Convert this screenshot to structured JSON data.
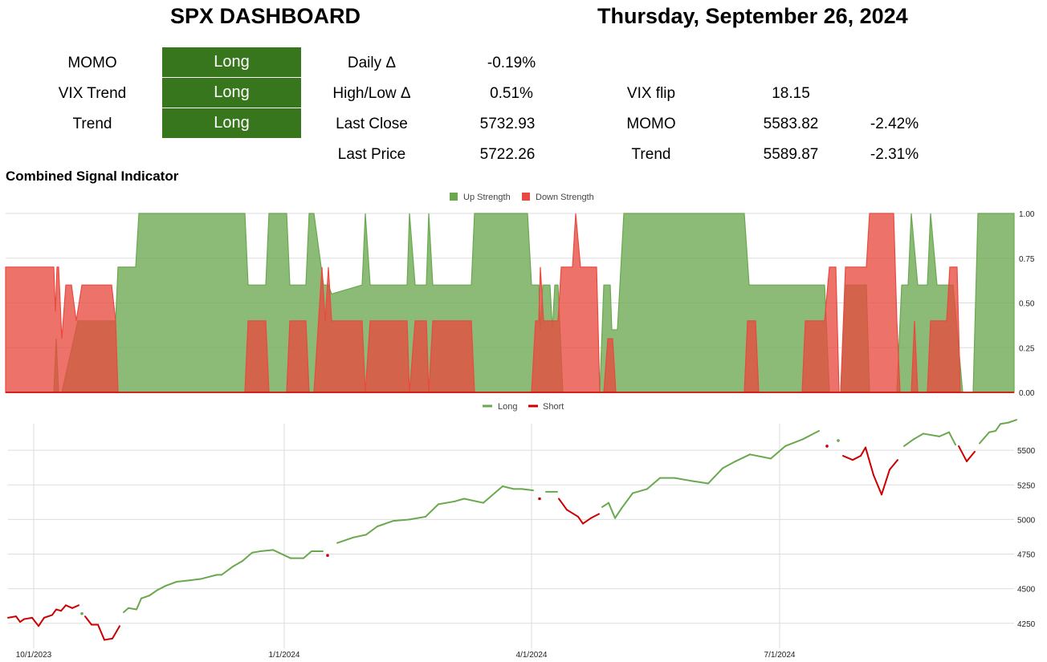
{
  "header": {
    "title": "SPX DASHBOARD",
    "date": "Thursday, September 26, 2024"
  },
  "signals": [
    {
      "label": "MOMO",
      "value": "Long"
    },
    {
      "label": "VIX Trend",
      "value": "Long"
    },
    {
      "label": "Trend",
      "value": "Long"
    }
  ],
  "stats": {
    "daily_label": "Daily Δ",
    "daily_value": "-0.19%",
    "highlow_label": "High/Low Δ",
    "highlow_value": "0.51%",
    "lastclose_label": "Last Close",
    "lastclose_value": "5732.93",
    "lastprice_label": "Last Price",
    "lastprice_value": "5722.26"
  },
  "levels": {
    "vixflip_label": "VIX flip",
    "vixflip_value": "18.15",
    "momo_label": "MOMO",
    "momo_value": "5583.82",
    "momo_pct": "-2.42%",
    "trend_label": "Trend",
    "trend_value": "5589.87",
    "trend_pct": "-2.31%"
  },
  "colors": {
    "long_green": "#38761d",
    "up_fill": "#6aa84f",
    "down_fill": "#e84a3f",
    "short_line": "#cc0000"
  },
  "chart_data": [
    {
      "type": "area",
      "title": "Combined Signal Indicator",
      "legend_position": "top-center",
      "ylim": [
        0,
        1
      ],
      "yticks": [
        "0.00",
        "0.25",
        "0.50",
        "0.75",
        "1.00"
      ],
      "grid": true,
      "series": [
        {
          "name": "Up Strength",
          "color": "#6aa84f",
          "points": [
            [
              0,
              0
            ],
            [
              60,
              0
            ],
            [
              63,
              0.3
            ],
            [
              66,
              0
            ],
            [
              70,
              0
            ],
            [
              85,
              0.3
            ],
            [
              90,
              0.4
            ],
            [
              95,
              0.4
            ],
            [
              137,
              0.4
            ],
            [
              140,
              0.7
            ],
            [
              162,
              0.7
            ],
            [
              166,
              1
            ],
            [
              298,
              1
            ],
            [
              302,
              0.6
            ],
            [
              324,
              0.6
            ],
            [
              328,
              1
            ],
            [
              350,
              1
            ],
            [
              354,
              0.6
            ],
            [
              374,
              0.6
            ],
            [
              378,
              1
            ],
            [
              384,
              1
            ],
            [
              396,
              0.6
            ],
            [
              402,
              0.6
            ],
            [
              406,
              0.55
            ],
            [
              444,
              0.6
            ],
            [
              448,
              1
            ],
            [
              454,
              0.6
            ],
            [
              500,
              0.6
            ],
            [
              503,
              1
            ],
            [
              510,
              0.6
            ],
            [
              524,
              0.6
            ],
            [
              527,
              1
            ],
            [
              532,
              0.6
            ],
            [
              580,
              0.6
            ],
            [
              584,
              1
            ],
            [
              650,
              1
            ],
            [
              655,
              0.6
            ],
            [
              664,
              0.6
            ],
            [
              666,
              0.35
            ],
            [
              669,
              0.6
            ],
            [
              678,
              0.6
            ],
            [
              681,
              0.35
            ],
            [
              684,
              0.6
            ],
            [
              688,
              0.6
            ],
            [
              694,
              0
            ],
            [
              740,
              0
            ],
            [
              745,
              0.6
            ],
            [
              753,
              0.6
            ],
            [
              755,
              0.35
            ],
            [
              762,
              0.35
            ],
            [
              770,
              1
            ],
            [
              920,
              1
            ],
            [
              926,
              0.6
            ],
            [
              1020,
              0.6
            ],
            [
              1026,
              0
            ],
            [
              1040,
              0
            ],
            [
              1046,
              0.6
            ],
            [
              1072,
              0.6
            ],
            [
              1076,
              0
            ],
            [
              1110,
              0
            ],
            [
              1116,
              0.6
            ],
            [
              1124,
              0.6
            ],
            [
              1128,
              1
            ],
            [
              1136,
              0.6
            ],
            [
              1148,
              0.6
            ],
            [
              1152,
              1
            ],
            [
              1160,
              0.6
            ],
            [
              1180,
              0.6
            ],
            [
              1186,
              0.3
            ],
            [
              1192,
              0
            ],
            [
              1205,
              0
            ],
            [
              1211,
              1
            ],
            [
              1256,
              1
            ]
          ]
        },
        {
          "name": "Down Strength",
          "color": "#e84a3f",
          "points": [
            [
              0,
              0.7
            ],
            [
              60,
              0.7
            ],
            [
              62,
              0.45
            ],
            [
              64,
              0.7
            ],
            [
              66,
              0.7
            ],
            [
              70,
              0.3
            ],
            [
              75,
              0.6
            ],
            [
              82,
              0.6
            ],
            [
              88,
              0.4
            ],
            [
              95,
              0.6
            ],
            [
              132,
              0.6
            ],
            [
              137,
              0.4
            ],
            [
              140,
              0
            ],
            [
              298,
              0
            ],
            [
              302,
              0.4
            ],
            [
              324,
              0.4
            ],
            [
              328,
              0
            ],
            [
              350,
              0
            ],
            [
              354,
              0.4
            ],
            [
              374,
              0.4
            ],
            [
              378,
              0
            ],
            [
              384,
              0
            ],
            [
              394,
              0.7
            ],
            [
              398,
              0.4
            ],
            [
              402,
              0.7
            ],
            [
              406,
              0.4
            ],
            [
              444,
              0.4
            ],
            [
              448,
              0
            ],
            [
              454,
              0.4
            ],
            [
              500,
              0.4
            ],
            [
              503,
              0
            ],
            [
              510,
              0.4
            ],
            [
              524,
              0.4
            ],
            [
              527,
              0
            ],
            [
              532,
              0.4
            ],
            [
              580,
              0.4
            ],
            [
              584,
              0
            ],
            [
              655,
              0
            ],
            [
              660,
              0.4
            ],
            [
              664,
              0.4
            ],
            [
              666,
              0.7
            ],
            [
              670,
              0.4
            ],
            [
              688,
              0.4
            ],
            [
              692,
              0.7
            ],
            [
              706,
              0.7
            ],
            [
              710,
              1
            ],
            [
              716,
              0.7
            ],
            [
              736,
              0.7
            ],
            [
              740,
              0
            ],
            [
              745,
              0
            ],
            [
              750,
              0.3
            ],
            [
              756,
              0.3
            ],
            [
              760,
              0
            ],
            [
              920,
              0
            ],
            [
              924,
              0.4
            ],
            [
              934,
              0.4
            ],
            [
              938,
              0
            ],
            [
              992,
              0
            ],
            [
              996,
              0.4
            ],
            [
              1020,
              0.4
            ],
            [
              1026,
              0.7
            ],
            [
              1034,
              0.7
            ],
            [
              1038,
              0
            ],
            [
              1040,
              0
            ],
            [
              1046,
              0.7
            ],
            [
              1072,
              0.7
            ],
            [
              1076,
              1
            ],
            [
              1106,
              1
            ],
            [
              1110,
              0.4
            ],
            [
              1114,
              0
            ],
            [
              1128,
              0
            ],
            [
              1132,
              0.4
            ],
            [
              1136,
              0
            ],
            [
              1148,
              0
            ],
            [
              1152,
              0.4
            ],
            [
              1172,
              0.4
            ],
            [
              1176,
              0.7
            ],
            [
              1185,
              0.7
            ],
            [
              1189,
              0
            ],
            [
              1205,
              0
            ],
            [
              1210,
              0
            ],
            [
              1256,
              0
            ]
          ]
        }
      ]
    },
    {
      "type": "line",
      "legend_position": "top-center",
      "ylim": [
        4150,
        5750
      ],
      "yticks": [
        "4250",
        "4500",
        "4750",
        "5000",
        "5250",
        "5500"
      ],
      "xticks": [
        "10/1/2023",
        "1/1/2024",
        "4/1/2024",
        "7/1/2024"
      ],
      "grid": true,
      "series": [
        {
          "name": "Long",
          "color": "#6aa84f"
        },
        {
          "name": "Short",
          "color": "#cc0000"
        }
      ],
      "price": [
        [
          0,
          4290,
          "S"
        ],
        [
          10,
          4300,
          "S"
        ],
        [
          15,
          4260,
          "S"
        ],
        [
          20,
          4280,
          "S"
        ],
        [
          30,
          4290,
          "S"
        ],
        [
          38,
          4230,
          "S"
        ],
        [
          45,
          4290,
          "S"
        ],
        [
          55,
          4310,
          "S"
        ],
        [
          60,
          4350,
          "S"
        ],
        [
          66,
          4340,
          "S"
        ],
        [
          72,
          4380,
          "S"
        ],
        [
          80,
          4360,
          "S"
        ],
        [
          88,
          4380,
          "S"
        ],
        [
          92,
          4320,
          "L"
        ],
        [
          96,
          4300,
          "S"
        ],
        [
          104,
          4240,
          "S"
        ],
        [
          112,
          4240,
          "S"
        ],
        [
          120,
          4130,
          "S"
        ],
        [
          130,
          4140,
          "S"
        ],
        [
          139,
          4230,
          "S"
        ],
        [
          144,
          4330,
          "L"
        ],
        [
          150,
          4360,
          "L"
        ],
        [
          160,
          4350,
          "L"
        ],
        [
          166,
          4430,
          "L"
        ],
        [
          176,
          4450,
          "L"
        ],
        [
          186,
          4490,
          "L"
        ],
        [
          196,
          4520,
          "L"
        ],
        [
          210,
          4550,
          "L"
        ],
        [
          226,
          4560,
          "L"
        ],
        [
          240,
          4570,
          "L"
        ],
        [
          260,
          4600,
          "L"
        ],
        [
          266,
          4600,
          "L"
        ],
        [
          280,
          4660,
          "L"
        ],
        [
          292,
          4700,
          "L"
        ],
        [
          304,
          4760,
          "L"
        ],
        [
          314,
          4770,
          "L"
        ],
        [
          330,
          4780,
          "L"
        ],
        [
          352,
          4720,
          "L"
        ],
        [
          368,
          4720,
          "L"
        ],
        [
          378,
          4770,
          "L"
        ],
        [
          392,
          4770,
          "L"
        ],
        [
          398,
          4740,
          "S"
        ],
        [
          410,
          4830,
          "L"
        ],
        [
          430,
          4870,
          "L"
        ],
        [
          446,
          4890,
          "L"
        ],
        [
          460,
          4950,
          "L"
        ],
        [
          480,
          4990,
          "L"
        ],
        [
          500,
          5000,
          "L"
        ],
        [
          520,
          5020,
          "L"
        ],
        [
          536,
          5110,
          "L"
        ],
        [
          556,
          5130,
          "L"
        ],
        [
          568,
          5150,
          "L"
        ],
        [
          592,
          5120,
          "L"
        ],
        [
          616,
          5240,
          "L"
        ],
        [
          630,
          5220,
          "L"
        ],
        [
          640,
          5220,
          "L"
        ],
        [
          654,
          5210,
          "L"
        ],
        [
          662,
          5150,
          "S"
        ],
        [
          670,
          5200,
          "L"
        ],
        [
          684,
          5200,
          "L"
        ],
        [
          686,
          5150,
          "S"
        ],
        [
          696,
          5070,
          "S"
        ],
        [
          710,
          5020,
          "S"
        ],
        [
          716,
          4970,
          "S"
        ],
        [
          726,
          5010,
          "S"
        ],
        [
          736,
          5040,
          "S"
        ],
        [
          740,
          5090,
          "L"
        ],
        [
          748,
          5120,
          "L"
        ],
        [
          756,
          5010,
          "L"
        ],
        [
          764,
          5080,
          "L"
        ],
        [
          778,
          5190,
          "L"
        ],
        [
          796,
          5220,
          "L"
        ],
        [
          812,
          5300,
          "L"
        ],
        [
          830,
          5300,
          "L"
        ],
        [
          850,
          5280,
          "L"
        ],
        [
          872,
          5260,
          "L"
        ],
        [
          890,
          5370,
          "L"
        ],
        [
          906,
          5420,
          "L"
        ],
        [
          924,
          5470,
          "L"
        ],
        [
          950,
          5440,
          "L"
        ],
        [
          968,
          5530,
          "L"
        ],
        [
          990,
          5580,
          "L"
        ],
        [
          1010,
          5640,
          "L"
        ],
        [
          1020,
          5530,
          "S"
        ],
        [
          1034,
          5570,
          "L"
        ],
        [
          1040,
          5460,
          "S"
        ],
        [
          1052,
          5430,
          "S"
        ],
        [
          1062,
          5460,
          "S"
        ],
        [
          1068,
          5520,
          "S"
        ],
        [
          1078,
          5320,
          "S"
        ],
        [
          1088,
          5180,
          "S"
        ],
        [
          1098,
          5360,
          "S"
        ],
        [
          1108,
          5430,
          "S"
        ],
        [
          1116,
          5530,
          "L"
        ],
        [
          1128,
          5580,
          "L"
        ],
        [
          1140,
          5620,
          "L"
        ],
        [
          1160,
          5600,
          "L"
        ],
        [
          1172,
          5630,
          "L"
        ],
        [
          1180,
          5540,
          "L"
        ],
        [
          1184,
          5530,
          "S"
        ],
        [
          1194,
          5420,
          "S"
        ],
        [
          1204,
          5490,
          "S"
        ],
        [
          1210,
          5550,
          "L"
        ],
        [
          1222,
          5630,
          "L"
        ],
        [
          1230,
          5640,
          "L"
        ],
        [
          1236,
          5690,
          "L"
        ],
        [
          1246,
          5700,
          "L"
        ],
        [
          1256,
          5720,
          "L"
        ]
      ]
    }
  ]
}
